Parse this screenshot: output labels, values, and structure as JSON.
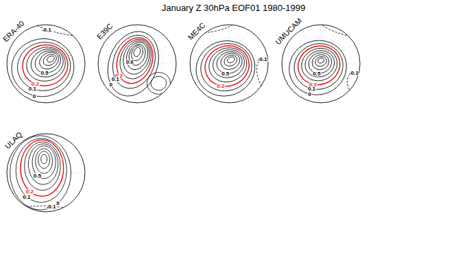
{
  "chart_data": {
    "type": "contour",
    "title": "January Z 30hPa EOF01 1980-1999",
    "panels": [
      {
        "name": "ERA-40",
        "xlim": [
          -1,
          1
        ],
        "ylim": [
          -1,
          1
        ],
        "grid": true,
        "contours": [
          {
            "level": 0.8,
            "center": [
              0.12,
              0.12
            ],
            "radii": [
              0.1,
              0.07
            ],
            "angle": 30
          },
          {
            "level": 0.7,
            "center": [
              0.1,
              0.1
            ],
            "radii": [
              0.18,
              0.13
            ],
            "angle": 30
          },
          {
            "level": 0.6,
            "center": [
              0.08,
              0.08
            ],
            "radii": [
              0.26,
              0.2
            ],
            "angle": 30
          },
          {
            "level": 0.5,
            "label": "0.5",
            "center": [
              0.05,
              0.05
            ],
            "radii": [
              0.34,
              0.27
            ],
            "angle": 25
          },
          {
            "level": 0.4,
            "center": [
              0.03,
              0.02
            ],
            "radii": [
              0.42,
              0.35
            ],
            "angle": 20
          },
          {
            "level": 0.3,
            "center": [
              0.0,
              -0.01
            ],
            "radii": [
              0.5,
              0.43
            ],
            "angle": 15
          },
          {
            "level": 0.2,
            "label": "0.2",
            "color": "#e8141c",
            "center": [
              -0.02,
              -0.04
            ],
            "radii": [
              0.58,
              0.52
            ],
            "angle": 10
          },
          {
            "level": 0.1,
            "label": "0.1",
            "center": [
              -0.05,
              -0.07
            ],
            "radii": [
              0.68,
              0.62
            ],
            "angle": 10
          },
          {
            "level": 0,
            "label": "0",
            "center": [
              -0.08,
              -0.1
            ],
            "radii": [
              0.8,
              0.74
            ],
            "angle": 10
          },
          {
            "level": -0.1,
            "label": "-0.1",
            "line_style": "dashed",
            "center": [
              0.3,
              1.05
            ],
            "radii": [
              0.9,
              0.25
            ],
            "angle": -15
          }
        ]
      },
      {
        "name": "E39C",
        "xlim": [
          -1,
          1
        ],
        "ylim": [
          -1,
          1
        ],
        "grid": true,
        "contours": [
          {
            "level": 0.8,
            "center": [
              0.0,
              0.3
            ],
            "radii": [
              0.08,
              0.12
            ],
            "angle": -20
          },
          {
            "level": 0.7,
            "center": [
              0.0,
              0.27
            ],
            "radii": [
              0.14,
              0.2
            ],
            "angle": -20
          },
          {
            "level": 0.6,
            "label": "0.6",
            "center": [
              0.0,
              0.23
            ],
            "radii": [
              0.2,
              0.28
            ],
            "angle": -20
          },
          {
            "level": 0.5,
            "center": [
              0.0,
              0.2
            ],
            "radii": [
              0.26,
              0.36
            ],
            "angle": -20
          },
          {
            "level": 0.4,
            "center": [
              -0.02,
              0.16
            ],
            "radii": [
              0.32,
              0.44
            ],
            "angle": -20
          },
          {
            "level": 0.3,
            "center": [
              -0.04,
              0.12
            ],
            "radii": [
              0.38,
              0.52
            ],
            "angle": -20
          },
          {
            "level": 0.2,
            "label": "0.2",
            "color": "#e8141c",
            "center": [
              -0.06,
              0.08
            ],
            "radii": [
              0.44,
              0.6
            ],
            "angle": -20
          },
          {
            "level": 0.1,
            "label": "0.1",
            "center": [
              -0.08,
              0.05
            ],
            "radii": [
              0.52,
              0.7
            ],
            "angle": -20
          },
          {
            "level": 0,
            "label": "0",
            "center": [
              -0.1,
              0.0
            ],
            "radii": [
              0.62,
              0.85
            ],
            "angle": -20
          },
          {
            "level": 0.1,
            "center": [
              0.55,
              -0.5
            ],
            "radii": [
              0.2,
              0.18
            ],
            "angle": 0
          },
          {
            "level": 0,
            "center": [
              0.55,
              -0.5
            ],
            "radii": [
              0.3,
              0.28
            ],
            "angle": 0
          }
        ]
      },
      {
        "name": "ME4C",
        "xlim": [
          -1,
          1
        ],
        "ylim": [
          -1,
          1
        ],
        "grid": true,
        "contours": [
          {
            "level": 0.8,
            "center": [
              0.05,
              0.1
            ],
            "radii": [
              0.1,
              0.07
            ],
            "angle": 25
          },
          {
            "level": 0.7,
            "center": [
              0.04,
              0.08
            ],
            "radii": [
              0.17,
              0.13
            ],
            "angle": 25
          },
          {
            "level": 0.6,
            "center": [
              0.03,
              0.06
            ],
            "radii": [
              0.25,
              0.2
            ],
            "angle": 20
          },
          {
            "level": 0.5,
            "label": "0.5",
            "center": [
              0.01,
              0.03
            ],
            "radii": [
              0.33,
              0.27
            ],
            "angle": 20
          },
          {
            "level": 0.4,
            "center": [
              -0.01,
              0.0
            ],
            "radii": [
              0.41,
              0.35
            ],
            "angle": 20
          },
          {
            "level": 0.3,
            "center": [
              -0.03,
              -0.03
            ],
            "radii": [
              0.49,
              0.43
            ],
            "angle": 20
          },
          {
            "level": 0.2,
            "label": "0.2",
            "color": "#e8141c",
            "center": [
              -0.05,
              -0.06
            ],
            "radii": [
              0.57,
              0.51
            ],
            "angle": 20
          },
          {
            "level": 0.1,
            "center": [
              -0.07,
              -0.09
            ],
            "radii": [
              0.66,
              0.6
            ],
            "angle": 20
          },
          {
            "level": 0,
            "center": [
              -0.09,
              -0.12
            ],
            "radii": [
              0.76,
              0.7
            ],
            "angle": 20
          },
          {
            "level": -0.1,
            "label": "-0.1",
            "line_style": "dashed",
            "center": [
              -0.45,
              1.02
            ],
            "radii": [
              0.65,
              0.2
            ],
            "angle": 10
          },
          {
            "level": -0.1,
            "label": "-0.1",
            "line_style": "dashed",
            "center": [
              1.0,
              -0.35
            ],
            "radii": [
              0.25,
              0.5
            ],
            "angle": 20
          }
        ]
      },
      {
        "name": "UMUCAM",
        "xlim": [
          -1,
          1
        ],
        "ylim": [
          -1,
          1
        ],
        "grid": true,
        "contours": [
          {
            "level": 0.8,
            "center": [
              0.0,
              0.08
            ],
            "radii": [
              0.08,
              0.06
            ],
            "angle": 20
          },
          {
            "level": 0.7,
            "center": [
              0.0,
              0.06
            ],
            "radii": [
              0.15,
              0.12
            ],
            "angle": 20
          },
          {
            "level": 0.6,
            "center": [
              -0.01,
              0.04
            ],
            "radii": [
              0.22,
              0.19
            ],
            "angle": 20
          },
          {
            "level": 0.5,
            "label": "0.5",
            "center": [
              -0.02,
              0.02
            ],
            "radii": [
              0.3,
              0.26
            ],
            "angle": 20
          },
          {
            "level": 0.4,
            "center": [
              -0.03,
              0.0
            ],
            "radii": [
              0.38,
              0.33
            ],
            "angle": 20
          },
          {
            "level": 0.3,
            "center": [
              -0.04,
              -0.02
            ],
            "radii": [
              0.46,
              0.41
            ],
            "angle": 20
          },
          {
            "level": 0.2,
            "label": "0.2",
            "color": "#e8141c",
            "center": [
              -0.05,
              -0.04
            ],
            "radii": [
              0.54,
              0.49
            ],
            "angle": 20
          },
          {
            "level": 0.1,
            "label": "0.1",
            "center": [
              -0.06,
              -0.07
            ],
            "radii": [
              0.63,
              0.58
            ],
            "angle": 20
          },
          {
            "level": 0,
            "label": "0",
            "center": [
              -0.08,
              -0.1
            ],
            "radii": [
              0.74,
              0.69
            ],
            "angle": 20
          },
          {
            "level": -0.1,
            "label": "-0.1",
            "line_style": "dashed",
            "center": [
              0.5,
              1.0
            ],
            "radii": [
              0.7,
              0.22
            ],
            "angle": -20
          },
          {
            "level": -0.1,
            "label": "-0.1",
            "line_style": "dashed",
            "center": [
              0.95,
              -0.55
            ],
            "radii": [
              0.25,
              0.35
            ],
            "angle": 30
          }
        ]
      },
      {
        "name": "ULAQ",
        "xlim": [
          -1,
          1
        ],
        "ylim": [
          -1,
          1
        ],
        "grid": true,
        "contours": [
          {
            "level": 0.8,
            "center": [
              -0.05,
              0.35
            ],
            "radii": [
              0.08,
              0.12
            ],
            "angle": 0
          },
          {
            "level": 0.7,
            "center": [
              -0.05,
              0.33
            ],
            "radii": [
              0.15,
              0.22
            ],
            "angle": 0
          },
          {
            "level": 0.6,
            "center": [
              -0.05,
              0.3
            ],
            "radii": [
              0.22,
              0.32
            ],
            "angle": 0
          },
          {
            "level": 0.5,
            "label": "0.5",
            "center": [
              -0.05,
              0.27
            ],
            "radii": [
              0.3,
              0.42
            ],
            "angle": 0
          },
          {
            "level": 0.4,
            "center": [
              -0.07,
              0.22
            ],
            "radii": [
              0.38,
              0.52
            ],
            "angle": 0
          },
          {
            "level": 0.3,
            "center": [
              -0.09,
              0.17
            ],
            "radii": [
              0.46,
              0.62
            ],
            "angle": 0
          },
          {
            "level": 0.2,
            "label": "0.2",
            "color": "#e8141c",
            "center": [
              -0.1,
              0.12
            ],
            "radii": [
              0.55,
              0.72
            ],
            "angle": 0
          },
          {
            "level": 0.1,
            "label": "0.1",
            "center": [
              -0.12,
              0.06
            ],
            "radii": [
              0.65,
              0.82
            ],
            "angle": 0
          },
          {
            "level": 0,
            "label": "0",
            "center": [
              -0.14,
              0.0
            ],
            "radii": [
              0.78,
              0.95
            ],
            "angle": 0
          },
          {
            "level": -0.1,
            "label": "-0.1",
            "line_style": "dashed",
            "center": [
              -0.1,
              -1.05
            ],
            "radii": [
              0.9,
              0.2
            ],
            "angle": 0
          }
        ]
      }
    ]
  }
}
